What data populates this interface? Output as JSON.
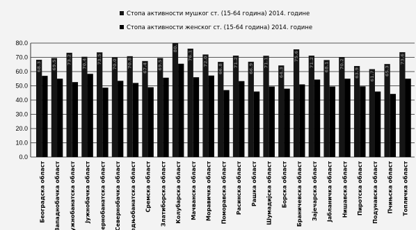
{
  "chart_data": {
    "type": "bar",
    "legend": [
      {
        "name": "Стопа активности мушког ст. (15-64 година) 2014. године",
        "color": "#151515"
      },
      {
        "name": "Стопа активности женског ст. (15-64 година) 2014. године",
        "color": "#000000"
      }
    ],
    "legend_position": "top-right",
    "grid": true,
    "ylim": [
      0,
      80
    ],
    "yticks": [
      "0.0",
      "10.0",
      "20.0",
      "30.0",
      "40.0",
      "50.0",
      "60.0",
      "70.0",
      "80.0"
    ],
    "categories": [
      "Београдска област",
      "Западнобачка област",
      "Јужнобанатска област",
      "Јужнобачка област",
      "Севернобанатска област",
      "Севернобачка област",
      "Средњобанатска област",
      "Сремска област",
      "Златиборска област",
      "Колубарска област",
      "Мачванска област",
      "Моравичка област",
      "Поморавска област",
      "Расинска област",
      "Рашка област",
      "Шумадијска област",
      "Борска област",
      "Браничевска област",
      "Зајечарска област",
      "Јабланичка област",
      "Нишавска област",
      "Пиротска област",
      "Подунавска област",
      "Пчињска област",
      "Топличка област"
    ],
    "series": [
      {
        "name": "Стопа активности мушког ст. (15-64 година) 2014. године",
        "values": [
          68.3,
          69.5,
          73.2,
          70.4,
          73.5,
          70.0,
          70.8,
          67.4,
          69.5,
          80.0,
          76.1,
          72.0,
          66.8,
          71.2,
          66.9,
          71.1,
          64.3,
          75.6,
          71.2,
          68.1,
          70.2,
          63.9,
          61.7,
          65.3,
          73.6
        ]
      },
      {
        "name": "Стопа активности женског ст. (15-64 година) 2014. године",
        "values": [
          57.0,
          55.0,
          52.6,
          58.4,
          48.7,
          53.5,
          52.0,
          49.0,
          55.7,
          65.5,
          56.0,
          57.2,
          47.0,
          53.3,
          46.0,
          49.5,
          48.0,
          51.0,
          54.4,
          49.5,
          55.0,
          49.6,
          46.0,
          44.3,
          55.0
        ]
      }
    ],
    "data_labels": {
      "male": [
        "68.3",
        "69.5",
        "73.2",
        "70.4",
        "73.5",
        "70.0",
        "70.8",
        "67.4",
        "69.5",
        "80.",
        "76.1",
        "72.0",
        "66.8",
        "71.2",
        "66.9",
        "71.1",
        "64.3",
        "75.6",
        "71.2",
        "68.1",
        "70.2",
        "63.9",
        "61.7",
        "65.3",
        "73.6"
      ]
    }
  }
}
